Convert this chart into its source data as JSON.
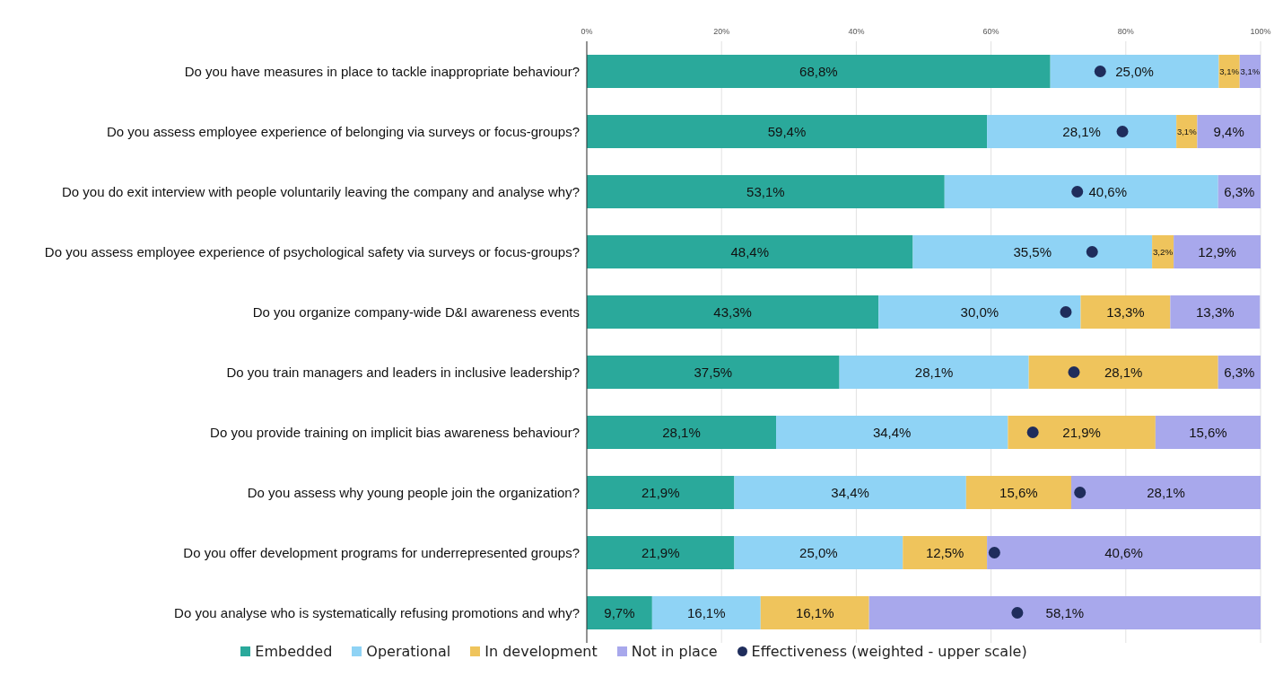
{
  "chart_data": {
    "type": "bar",
    "orientation": "horizontal",
    "stacked": true,
    "grid": "x",
    "legend": "bottom",
    "categories": [
      "Do you have measures in place to tackle inappropriate behaviour?",
      "Do you assess employee experience of belonging via surveys or focus-groups?",
      "Do you do exit interview with people voluntarily leaving the company and analyse why?",
      "Do you assess employee experience of psychological safety via surveys or focus-groups?",
      "Do you organize company-wide D&I awareness events",
      "Do you train managers and leaders in inclusive leadership?",
      "Do you provide training on implicit bias awareness behaviour?",
      "Do you assess why young people join the organization?",
      "Do you offer development programs for underrepresented groups?",
      "Do you analyse who is systematically refusing promotions and why?"
    ],
    "xlim": [
      0,
      100
    ],
    "xticks": [
      {
        "value": 0,
        "label": "0%"
      },
      {
        "value": 20,
        "label": "20%"
      },
      {
        "value": 40,
        "label": "40%"
      },
      {
        "value": 60,
        "label": "60%"
      },
      {
        "value": 80,
        "label": "80%"
      },
      {
        "value": 100,
        "label": "100%"
      }
    ],
    "series": [
      {
        "name": "Embedded",
        "color": "#2aa99b",
        "values": [
          68.8,
          59.4,
          53.1,
          48.4,
          43.3,
          37.5,
          28.1,
          21.9,
          21.9,
          9.7
        ],
        "value_labels": [
          "68,8%",
          "59,4%",
          "53,1%",
          "48,4%",
          "43,3%",
          "37,5%",
          "28,1%",
          "21,9%",
          "21,9%",
          "9,7%"
        ]
      },
      {
        "name": "Operational",
        "color": "#8fd3f5",
        "values": [
          25.0,
          28.1,
          40.6,
          35.5,
          30.0,
          28.1,
          34.4,
          34.4,
          25.0,
          16.1
        ],
        "value_labels": [
          "25,0%",
          "28,1%",
          "40,6%",
          "35,5%",
          "30,0%",
          "28,1%",
          "34,4%",
          "34,4%",
          "25,0%",
          "16,1%"
        ]
      },
      {
        "name": "In development",
        "color": "#efc45c",
        "values": [
          3.1,
          3.1,
          null,
          3.2,
          13.3,
          28.1,
          21.9,
          15.6,
          12.5,
          16.1
        ],
        "value_labels": [
          "3,1%",
          "3,1%",
          null,
          "3,2%",
          "13,3%",
          "28,1%",
          "21,9%",
          "15,6%",
          "12,5%",
          "16,1%"
        ]
      },
      {
        "name": "Not in place",
        "color": "#a8a8ec",
        "values": [
          3.1,
          9.4,
          6.3,
          12.9,
          13.3,
          6.3,
          15.6,
          28.1,
          40.6,
          58.1
        ],
        "value_labels": [
          "3,1%",
          "9,4%",
          "6,3%",
          "12,9%",
          "13,3%",
          "6,3%",
          "15,6%",
          "28,1%",
          "40,6%",
          "58,1%"
        ]
      },
      {
        "name": "Effectiveness (weighted - upper scale)",
        "type": "scatter",
        "marker": "circle",
        "color": "#1f2d5c",
        "values": [
          76.2,
          79.5,
          72.8,
          75.0,
          71.1,
          72.3,
          66.2,
          73.2,
          60.5,
          63.9
        ]
      }
    ]
  }
}
